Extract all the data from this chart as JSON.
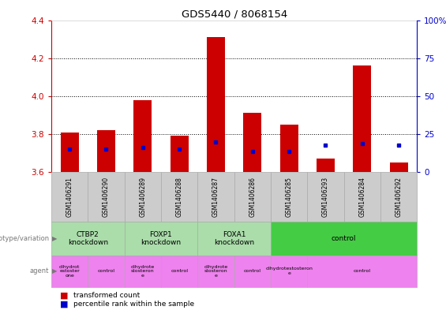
{
  "title": "GDS5440 / 8068154",
  "samples": [
    "GSM1406291",
    "GSM1406290",
    "GSM1406289",
    "GSM1406288",
    "GSM1406287",
    "GSM1406286",
    "GSM1406285",
    "GSM1406293",
    "GSM1406284",
    "GSM1406292"
  ],
  "red_values": [
    3.81,
    3.82,
    3.98,
    3.79,
    4.31,
    3.91,
    3.85,
    3.67,
    4.16,
    3.65
  ],
  "blue_values": [
    3.72,
    3.72,
    3.73,
    3.72,
    3.76,
    3.71,
    3.71,
    3.74,
    3.75,
    3.74
  ],
  "ymin": 3.6,
  "ymax": 4.4,
  "y2min": 0,
  "y2max": 100,
  "yticks": [
    3.6,
    3.8,
    4.0,
    4.2,
    4.4
  ],
  "y2ticks": [
    0,
    25,
    50,
    75,
    100
  ],
  "y2ticklabels": [
    "0",
    "25",
    "50",
    "75",
    "100%"
  ],
  "genotype_groups": [
    {
      "label": "CTBP2\nknockdown",
      "start": 0,
      "end": 2,
      "light": true
    },
    {
      "label": "FOXP1\nknockdown",
      "start": 2,
      "end": 4,
      "light": true
    },
    {
      "label": "FOXA1\nknockdown",
      "start": 4,
      "end": 6,
      "light": true
    },
    {
      "label": "control",
      "start": 6,
      "end": 10,
      "light": false
    }
  ],
  "agent_groups": [
    {
      "label": "dihydrot\nestoster\none",
      "start": 0,
      "end": 1
    },
    {
      "label": "control",
      "start": 1,
      "end": 2
    },
    {
      "label": "dihydrote\nstosteron\ne",
      "start": 2,
      "end": 3
    },
    {
      "label": "control",
      "start": 3,
      "end": 4
    },
    {
      "label": "dihydrote\nstosteron\ne",
      "start": 4,
      "end": 5
    },
    {
      "label": "control",
      "start": 5,
      "end": 6
    },
    {
      "label": "dihydrotestosteron\ne",
      "start": 6,
      "end": 7
    },
    {
      "label": "control",
      "start": 7,
      "end": 10
    }
  ],
  "bar_color": "#cc0000",
  "dot_color": "#0000cc",
  "bar_width": 0.5,
  "left_axis_color": "#cc0000",
  "right_axis_color": "#0000cc",
  "geno_light_color": "#aaddaa",
  "geno_dark_color": "#44cc44",
  "agent_color": "#ee82ee",
  "sample_bg_color": "#cccccc",
  "left_label_color": "#777777",
  "legend_bar_label": "transformed count",
  "legend_dot_label": "percentile rank within the sample",
  "left_row_label_geno": "genotype/variation",
  "left_row_label_agent": "agent"
}
